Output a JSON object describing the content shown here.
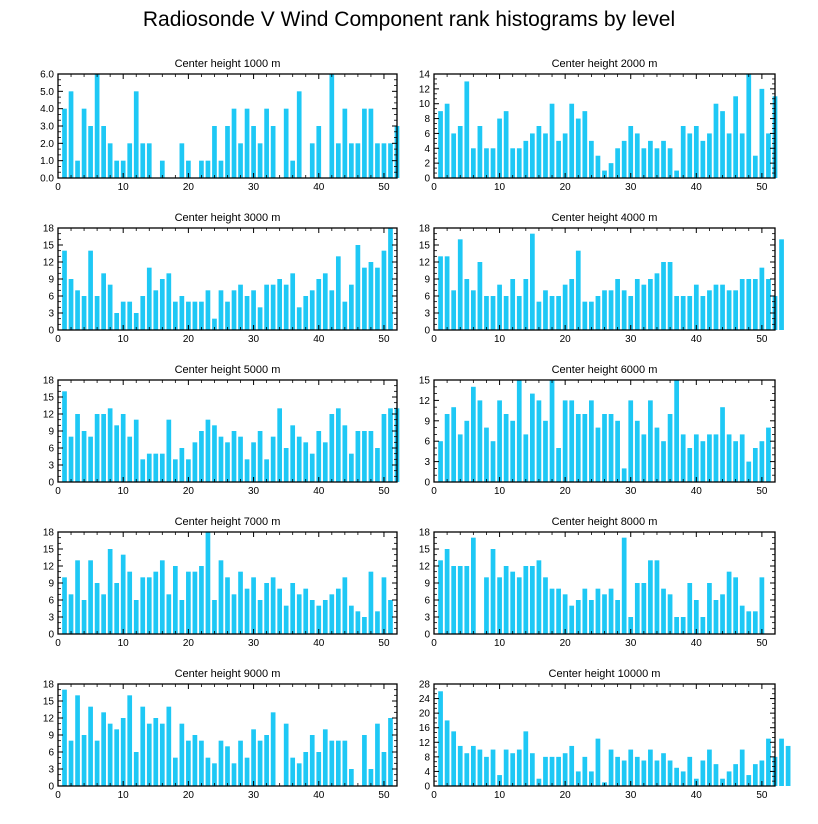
{
  "figure": {
    "title": "Radiosonde V Wind Component rank histograms by level",
    "bar_color": "#1ec8f5",
    "axis_color": "#000000"
  },
  "chart_data": [
    {
      "type": "bar",
      "title": "Center height 1000 m",
      "ylim": [
        0,
        6
      ],
      "yticks": [
        "0.0",
        "1.0",
        "2.0",
        "3.0",
        "4.0",
        "5.0",
        "6.0"
      ],
      "xlim": [
        0,
        52
      ],
      "xticks": [
        0,
        10,
        20,
        30,
        40,
        50
      ],
      "values": [
        4,
        5,
        1,
        4,
        3,
        6,
        3,
        2,
        1,
        1,
        2,
        5,
        2,
        2,
        0,
        1,
        0,
        0,
        2,
        1,
        0,
        1,
        1,
        3,
        1,
        3,
        4,
        2,
        4,
        3,
        2,
        4,
        3,
        0,
        4,
        1,
        5,
        0,
        2,
        3,
        0,
        6,
        2,
        4,
        2,
        2,
        4,
        4,
        2,
        2,
        2,
        3
      ]
    },
    {
      "type": "bar",
      "title": "Center height 2000 m",
      "ylim": [
        0,
        14
      ],
      "yticks": [
        "0",
        "2",
        "4",
        "6",
        "8",
        "10",
        "12",
        "14"
      ],
      "xlim": [
        0,
        52
      ],
      "xticks": [
        0,
        10,
        20,
        30,
        40,
        50
      ],
      "values": [
        9,
        10,
        6,
        7,
        13,
        4,
        7,
        4,
        4,
        8,
        9,
        4,
        4,
        5,
        6,
        7,
        6,
        10,
        5,
        6,
        10,
        8,
        9,
        5,
        3,
        1,
        2,
        4,
        5,
        7,
        6,
        4,
        5,
        4,
        5,
        4,
        1,
        7,
        6,
        7,
        5,
        6,
        10,
        9,
        6,
        11,
        6,
        14,
        3,
        12,
        6,
        11
      ]
    },
    {
      "type": "bar",
      "title": "Center height 3000 m",
      "ylim": [
        0,
        18
      ],
      "yticks": [
        "0",
        "3",
        "6",
        "9",
        "12",
        "15",
        "18"
      ],
      "xlim": [
        0,
        52
      ],
      "xticks": [
        0,
        10,
        20,
        30,
        40,
        50
      ],
      "values": [
        14,
        9,
        7,
        6,
        14,
        6,
        10,
        8,
        3,
        5,
        5,
        3,
        6,
        11,
        7,
        9,
        10,
        5,
        6,
        5,
        5,
        5,
        7,
        2,
        7,
        5,
        7,
        8,
        6,
        7,
        4,
        8,
        8,
        9,
        8,
        10,
        4,
        6,
        7,
        9,
        10,
        7,
        13,
        5,
        8,
        15,
        11,
        12,
        11,
        14,
        18
      ]
    },
    {
      "type": "bar",
      "title": "Center height 4000 m",
      "ylim": [
        0,
        18
      ],
      "yticks": [
        "0",
        "3",
        "6",
        "9",
        "12",
        "15",
        "18"
      ],
      "xlim": [
        0,
        52
      ],
      "xticks": [
        0,
        10,
        20,
        30,
        40,
        50
      ],
      "values": [
        13,
        13,
        7,
        16,
        9,
        7,
        12,
        6,
        6,
        8,
        6,
        9,
        6,
        9,
        17,
        5,
        7,
        6,
        6,
        8,
        9,
        14,
        5,
        5,
        6,
        7,
        7,
        9,
        7,
        6,
        9,
        8,
        9,
        10,
        12,
        12,
        6,
        6,
        6,
        8,
        6,
        7,
        8,
        8,
        7,
        7,
        9,
        9,
        9,
        11,
        9,
        6,
        16
      ]
    },
    {
      "type": "bar",
      "title": "Center height 5000 m",
      "ylim": [
        0,
        18
      ],
      "yticks": [
        "0",
        "3",
        "6",
        "9",
        "12",
        "15",
        "18"
      ],
      "xlim": [
        0,
        52
      ],
      "xticks": [
        0,
        10,
        20,
        30,
        40,
        50
      ],
      "values": [
        16,
        8,
        12,
        9,
        8,
        12,
        12,
        13,
        10,
        12,
        8,
        11,
        4,
        5,
        5,
        5,
        11,
        4,
        6,
        4,
        7,
        9,
        11,
        10,
        8,
        7,
        9,
        8,
        4,
        7,
        9,
        4,
        8,
        13,
        6,
        10,
        8,
        7,
        5,
        9,
        7,
        12,
        13,
        10,
        5,
        9,
        9,
        9,
        6,
        12,
        13,
        13
      ]
    },
    {
      "type": "bar",
      "title": "Center height 6000 m",
      "ylim": [
        0,
        15
      ],
      "yticks": [
        "0",
        "3",
        "6",
        "9",
        "12",
        "15"
      ],
      "xlim": [
        0,
        52
      ],
      "xticks": [
        0,
        10,
        20,
        30,
        40,
        50
      ],
      "values": [
        6,
        10,
        11,
        7,
        9,
        14,
        12,
        8,
        6,
        12,
        10,
        9,
        15,
        7,
        13,
        12,
        9,
        15,
        5,
        12,
        12,
        10,
        10,
        12,
        8,
        10,
        10,
        9,
        2,
        12,
        9,
        7,
        12,
        8,
        6,
        10,
        15,
        7,
        5,
        7,
        6,
        7,
        7,
        11,
        7,
        6,
        7,
        3,
        5,
        6,
        8
      ]
    },
    {
      "type": "bar",
      "title": "Center height 7000 m",
      "ylim": [
        0,
        18
      ],
      "yticks": [
        "0",
        "3",
        "6",
        "9",
        "12",
        "15",
        "18"
      ],
      "xlim": [
        0,
        52
      ],
      "xticks": [
        0,
        10,
        20,
        30,
        40,
        50
      ],
      "values": [
        10,
        7,
        13,
        6,
        13,
        9,
        7,
        15,
        9,
        14,
        11,
        6,
        10,
        10,
        11,
        13,
        7,
        12,
        6,
        11,
        11,
        12,
        18,
        6,
        13,
        10,
        7,
        11,
        8,
        10,
        6,
        9,
        10,
        8,
        5,
        9,
        7,
        8,
        6,
        5,
        6,
        7,
        8,
        10,
        5,
        4,
        3,
        11,
        4,
        10,
        6
      ]
    },
    {
      "type": "bar",
      "title": "Center height 8000 m",
      "ylim": [
        0,
        18
      ],
      "yticks": [
        "0",
        "3",
        "6",
        "9",
        "12",
        "15",
        "18"
      ],
      "xlim": [
        0,
        52
      ],
      "xticks": [
        0,
        10,
        20,
        30,
        40,
        50
      ],
      "values": [
        13,
        15,
        12,
        12,
        12,
        17,
        0,
        10,
        15,
        10,
        12,
        11,
        10,
        12,
        12,
        13,
        10,
        8,
        8,
        7,
        5,
        6,
        8,
        6,
        8,
        7,
        8,
        6,
        17,
        3,
        9,
        9,
        13,
        13,
        8,
        7,
        3,
        3,
        9,
        6,
        3,
        9,
        6,
        7,
        11,
        10,
        5,
        4,
        4,
        10
      ]
    },
    {
      "type": "bar",
      "title": "Center height 9000 m",
      "ylim": [
        0,
        18
      ],
      "yticks": [
        "0",
        "3",
        "6",
        "9",
        "12",
        "15",
        "18"
      ],
      "xlim": [
        0,
        52
      ],
      "xticks": [
        0,
        10,
        20,
        30,
        40,
        50
      ],
      "values": [
        17,
        8,
        16,
        9,
        14,
        8,
        13,
        11,
        10,
        12,
        16,
        6,
        14,
        11,
        12,
        11,
        14,
        5,
        11,
        8,
        9,
        8,
        5,
        4,
        8,
        7,
        4,
        8,
        5,
        10,
        8,
        9,
        13,
        0,
        11,
        5,
        4,
        6,
        9,
        6,
        10,
        8,
        8,
        8,
        3,
        0,
        9,
        3,
        11,
        6,
        12
      ]
    },
    {
      "type": "bar",
      "title": "Center height 10000 m",
      "ylim": [
        0,
        28
      ],
      "yticks": [
        "0",
        "4",
        "8",
        "12",
        "16",
        "20",
        "24",
        "28"
      ],
      "xlim": [
        0,
        52
      ],
      "xticks": [
        0,
        10,
        20,
        30,
        40,
        50
      ],
      "values": [
        26,
        18,
        15,
        11,
        9,
        11,
        10,
        8,
        10,
        3,
        10,
        9,
        10,
        15,
        9,
        2,
        8,
        8,
        8,
        9,
        11,
        4,
        8,
        4,
        13,
        1,
        10,
        8,
        7,
        10,
        8,
        7,
        10,
        7,
        9,
        7,
        5,
        4,
        8,
        2,
        7,
        10,
        6,
        2,
        4,
        6,
        10,
        3,
        6,
        7,
        13,
        8,
        13,
        11
      ]
    }
  ]
}
